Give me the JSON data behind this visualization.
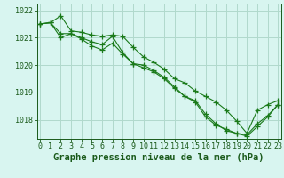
{
  "title": "Graphe pression niveau de la mer (hPa)",
  "xlabel_hours": [
    0,
    1,
    2,
    3,
    4,
    5,
    6,
    7,
    8,
    9,
    10,
    11,
    12,
    13,
    14,
    15,
    16,
    17,
    18,
    19,
    20,
    21,
    22,
    23
  ],
  "line1": [
    1021.5,
    1021.55,
    1021.15,
    1021.15,
    1021.0,
    1020.85,
    1020.75,
    1021.05,
    1020.45,
    1020.05,
    1020.0,
    1019.8,
    1019.55,
    1019.2,
    1018.85,
    1018.7,
    1018.2,
    1017.85,
    1017.6,
    1017.5,
    1017.45,
    1017.85,
    1018.15,
    1018.55
  ],
  "line2": [
    1021.5,
    1021.55,
    1021.8,
    1021.25,
    1021.2,
    1021.1,
    1021.05,
    1021.1,
    1021.05,
    1020.65,
    1020.3,
    1020.1,
    1019.85,
    1019.5,
    1019.35,
    1019.05,
    1018.85,
    1018.65,
    1018.35,
    1017.95,
    1017.5,
    1018.35,
    1018.55,
    1018.7
  ],
  "line3": [
    1021.5,
    1021.55,
    1021.0,
    1021.15,
    1020.95,
    1020.7,
    1020.55,
    1020.8,
    1020.4,
    1020.05,
    1019.9,
    1019.75,
    1019.5,
    1019.15,
    1018.85,
    1018.65,
    1018.1,
    1017.8,
    1017.65,
    1017.5,
    1017.4,
    1017.75,
    1018.1,
    1018.55
  ],
  "line_color": "#1a7a1a",
  "bg_color": "#d8f5f0",
  "grid_color": "#b0d9cc",
  "ylim_min": 1017.3,
  "ylim_max": 1022.25,
  "yticks": [
    1018,
    1019,
    1020,
    1021,
    1022
  ],
  "marker": "+",
  "markersize": 4,
  "linewidth": 0.8,
  "title_fontsize": 7.5,
  "tick_fontsize": 6,
  "title_color": "#1a5a1a",
  "tick_color": "#1a5a1a",
  "spine_color": "#1a5a1a"
}
